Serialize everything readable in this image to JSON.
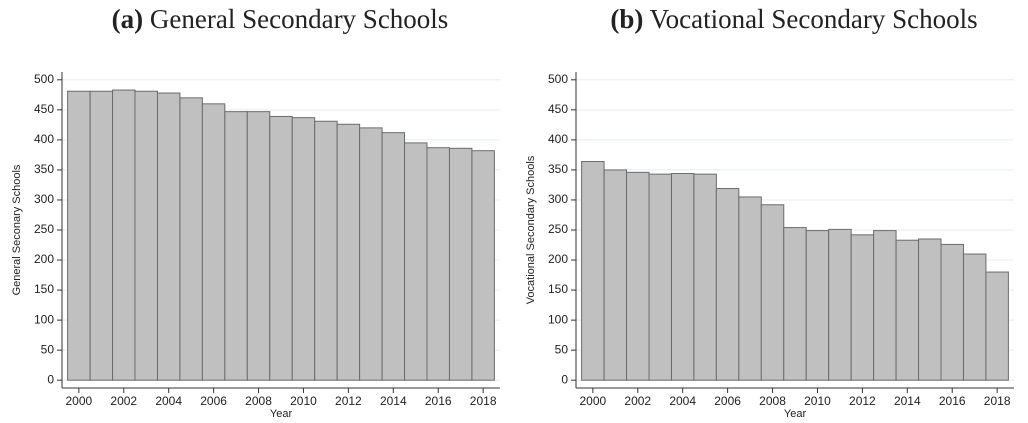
{
  "chart_data": [
    {
      "type": "bar",
      "panel": "(a)",
      "title": "General Secondary Schools",
      "x_label": "Year",
      "y_label": "General Seconary Schools",
      "x": [
        2000,
        2001,
        2002,
        2003,
        2004,
        2005,
        2006,
        2007,
        2008,
        2009,
        2010,
        2011,
        2012,
        2013,
        2014,
        2015,
        2016,
        2017,
        2018
      ],
      "values": [
        481,
        481,
        483,
        481,
        478,
        470,
        460,
        447,
        447,
        439,
        437,
        431,
        426,
        420,
        412,
        395,
        387,
        386,
        382
      ],
      "color": "#c0c0c0",
      "grid": true,
      "xlim": [
        1999.25,
        2018.75
      ],
      "xticks": [
        2000,
        2002,
        2004,
        2006,
        2008,
        2010,
        2012,
        2014,
        2016,
        2018
      ],
      "ylim": [
        -13,
        513
      ],
      "yticks": [
        0,
        50,
        100,
        150,
        200,
        250,
        300,
        350,
        400,
        450,
        500
      ]
    },
    {
      "type": "bar",
      "panel": "(b)",
      "title": "Vocational Secondary Schools",
      "x_label": "Year",
      "y_label": "Vocational Secondary Schools",
      "x": [
        2000,
        2001,
        2002,
        2003,
        2004,
        2005,
        2006,
        2007,
        2008,
        2009,
        2010,
        2011,
        2012,
        2013,
        2014,
        2015,
        2016,
        2017,
        2018
      ],
      "values": [
        364,
        350,
        346,
        343,
        344,
        343,
        319,
        305,
        292,
        254,
        249,
        251,
        242,
        249,
        233,
        235,
        226,
        210,
        180
      ],
      "color": "#c0c0c0",
      "grid": true,
      "xlim": [
        1999.25,
        2018.75
      ],
      "xticks": [
        2000,
        2002,
        2004,
        2006,
        2008,
        2010,
        2012,
        2014,
        2016,
        2018
      ],
      "ylim": [
        -13,
        513
      ],
      "yticks": [
        0,
        50,
        100,
        150,
        200,
        250,
        300,
        350,
        400,
        450,
        500
      ]
    }
  ]
}
